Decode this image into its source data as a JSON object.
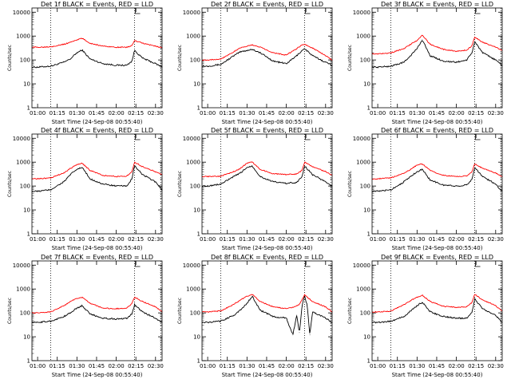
{
  "figure": {
    "ylabel": "Counts/sec",
    "xlabel": "Start Time (24-Sep-08 00:55:40)",
    "x_ticks": [
      "01:00",
      "01:15",
      "01:30",
      "01:45",
      "02:00",
      "02:15",
      "02:30"
    ],
    "y_ticks": [
      "1",
      "10",
      "100",
      "1000",
      "10000"
    ],
    "colors": {
      "events": "#000000",
      "lld": "#ff0000",
      "axes": "#000000"
    }
  },
  "chart_data": [
    {
      "type": "line",
      "title": "Det 1f BLACK = Events, RED = LLD",
      "xlim": [
        "00:55:40",
        "02:35:00"
      ],
      "ylim": [
        1,
        15000
      ],
      "log_y": true,
      "dotted_lines_at": [
        "01:10",
        "02:14",
        "02:34"
      ],
      "x": [
        "01:00",
        "01:10",
        "01:20",
        "01:25",
        "01:30",
        "01:34",
        "01:40",
        "01:50",
        "02:00",
        "02:08",
        "02:12",
        "02:14",
        "02:20",
        "02:30",
        "02:35"
      ],
      "series": [
        {
          "name": "BLACK = Events",
          "values": [
            50,
            55,
            80,
            110,
            200,
            260,
            110,
            70,
            60,
            60,
            90,
            250,
            120,
            70,
            50
          ]
        },
        {
          "name": "RED = LLD",
          "values": [
            340,
            360,
            450,
            550,
            700,
            800,
            500,
            380,
            340,
            340,
            400,
            650,
            500,
            380,
            320
          ]
        }
      ]
    },
    {
      "type": "line",
      "title": "Det 2f BLACK = Events, RED = LLD",
      "xlim": [
        "00:55:40",
        "02:35:00"
      ],
      "ylim": [
        1,
        15000
      ],
      "log_y": true,
      "dotted_lines_at": [
        "01:10",
        "02:14",
        "02:34"
      ],
      "x": [
        "01:00",
        "01:10",
        "01:20",
        "01:25",
        "01:30",
        "01:34",
        "01:40",
        "01:50",
        "02:00",
        "02:08",
        "02:12",
        "02:14",
        "02:20",
        "02:30",
        "02:35"
      ],
      "series": [
        {
          "name": "BLACK = Events",
          "values": [
            55,
            65,
            150,
            220,
            250,
            280,
            200,
            90,
            70,
            150,
            250,
            300,
            150,
            80,
            60
          ]
        },
        {
          "name": "RED = LLD",
          "values": [
            100,
            110,
            220,
            320,
            380,
            420,
            350,
            200,
            160,
            300,
            420,
            450,
            320,
            150,
            100
          ]
        }
      ]
    },
    {
      "type": "line",
      "title": "Det 3f BLACK = Events, RED = LLD",
      "xlim": [
        "00:55:40",
        "02:35:00"
      ],
      "ylim": [
        1,
        15000
      ],
      "log_y": true,
      "dotted_lines_at": [
        "01:10",
        "02:14",
        "02:34"
      ],
      "x": [
        "01:00",
        "01:10",
        "01:20",
        "01:25",
        "01:30",
        "01:34",
        "01:40",
        "01:50",
        "02:00",
        "02:08",
        "02:12",
        "02:14",
        "02:20",
        "02:30",
        "02:35"
      ],
      "series": [
        {
          "name": "BLACK = Events",
          "values": [
            50,
            55,
            80,
            150,
            300,
            700,
            150,
            90,
            80,
            100,
            200,
            600,
            200,
            100,
            60
          ]
        },
        {
          "name": "RED = LLD",
          "values": [
            180,
            200,
            300,
            450,
            650,
            1100,
            450,
            280,
            230,
            260,
            400,
            900,
            550,
            350,
            250
          ]
        }
      ]
    },
    {
      "type": "line",
      "title": "Det 4f BLACK = Events, RED = LLD",
      "xlim": [
        "00:55:40",
        "02:35:00"
      ],
      "ylim": [
        1,
        15000
      ],
      "log_y": true,
      "dotted_lines_at": [
        "01:10",
        "02:14",
        "02:34"
      ],
      "x": [
        "01:00",
        "01:10",
        "01:20",
        "01:25",
        "01:30",
        "01:34",
        "01:40",
        "01:50",
        "02:00",
        "02:08",
        "02:12",
        "02:14",
        "02:20",
        "02:30",
        "02:35"
      ],
      "series": [
        {
          "name": "BLACK = Events",
          "values": [
            60,
            70,
            150,
            300,
            500,
            600,
            200,
            120,
            100,
            100,
            200,
            700,
            300,
            150,
            70
          ]
        },
        {
          "name": "RED = LLD",
          "values": [
            200,
            220,
            350,
            550,
            800,
            900,
            450,
            280,
            250,
            260,
            400,
            1000,
            650,
            400,
            300
          ]
        }
      ]
    },
    {
      "type": "line",
      "title": "Det 5f BLACK = Events, RED = LLD",
      "xlim": [
        "00:55:40",
        "02:35:00"
      ],
      "ylim": [
        1,
        15000
      ],
      "log_y": true,
      "dotted_lines_at": [
        "01:10",
        "02:14",
        "02:34"
      ],
      "x": [
        "01:00",
        "01:10",
        "01:20",
        "01:25",
        "01:30",
        "01:34",
        "01:40",
        "01:50",
        "02:00",
        "02:08",
        "02:12",
        "02:14",
        "02:20",
        "02:30",
        "02:35"
      ],
      "series": [
        {
          "name": "BLACK = Events",
          "values": [
            100,
            120,
            250,
            350,
            600,
            700,
            250,
            150,
            130,
            140,
            250,
            700,
            300,
            150,
            100
          ]
        },
        {
          "name": "RED = LLD",
          "values": [
            250,
            260,
            400,
            550,
            900,
            1000,
            500,
            330,
            300,
            320,
            450,
            1000,
            650,
            400,
            280
          ]
        }
      ]
    },
    {
      "type": "line",
      "title": "Det 6f BLACK = Events, RED = LLD",
      "xlim": [
        "00:55:40",
        "02:35:00"
      ],
      "ylim": [
        1,
        15000
      ],
      "log_y": true,
      "dotted_lines_at": [
        "01:10",
        "02:14",
        "02:34"
      ],
      "x": [
        "01:00",
        "01:10",
        "01:20",
        "01:25",
        "01:30",
        "01:34",
        "01:40",
        "01:50",
        "02:00",
        "02:08",
        "02:12",
        "02:14",
        "02:20",
        "02:30",
        "02:35"
      ],
      "series": [
        {
          "name": "BLACK = Events",
          "values": [
            60,
            70,
            150,
            250,
            400,
            500,
            180,
            110,
            100,
            110,
            200,
            600,
            250,
            120,
            60
          ]
        },
        {
          "name": "RED = LLD",
          "values": [
            200,
            220,
            350,
            500,
            750,
            850,
            450,
            280,
            250,
            270,
            400,
            850,
            550,
            350,
            240
          ]
        }
      ]
    },
    {
      "type": "line",
      "title": "Det 7f BLACK = Events, RED = LLD",
      "xlim": [
        "00:55:40",
        "02:35:00"
      ],
      "ylim": [
        1,
        15000
      ],
      "log_y": true,
      "dotted_lines_at": [
        "01:10",
        "02:14",
        "02:34"
      ],
      "x": [
        "01:00",
        "01:10",
        "01:20",
        "01:25",
        "01:30",
        "01:34",
        "01:40",
        "01:50",
        "02:00",
        "02:08",
        "02:12",
        "02:14",
        "02:20",
        "02:30",
        "02:35"
      ],
      "series": [
        {
          "name": "BLACK = Events",
          "values": [
            40,
            45,
            70,
            100,
            160,
            200,
            90,
            60,
            55,
            60,
            90,
            220,
            110,
            60,
            40
          ]
        },
        {
          "name": "RED = LLD",
          "values": [
            100,
            110,
            200,
            300,
            400,
            450,
            250,
            160,
            150,
            160,
            250,
            450,
            300,
            180,
            110
          ]
        }
      ]
    },
    {
      "type": "line",
      "title": "Det 8f BLACK = Events, RED = LLD",
      "xlim": [
        "00:55:40",
        "02:35:00"
      ],
      "ylim": [
        1,
        15000
      ],
      "log_y": true,
      "dotted_lines_at": [
        "01:10",
        "02:14",
        "02:34"
      ],
      "x": [
        "01:00",
        "01:10",
        "01:20",
        "01:25",
        "01:30",
        "01:34",
        "01:40",
        "01:50",
        "02:00",
        "02:05",
        "02:08",
        "02:10",
        "02:12",
        "02:14",
        "02:16",
        "02:18",
        "02:20",
        "02:30",
        "02:35"
      ],
      "series": [
        {
          "name": "BLACK = Events",
          "values": [
            40,
            45,
            80,
            130,
            250,
            500,
            130,
            70,
            60,
            12,
            80,
            15,
            200,
            500,
            200,
            12,
            110,
            60,
            40
          ]
        },
        {
          "name": "RED = LLD",
          "values": [
            110,
            120,
            230,
            350,
            500,
            600,
            300,
            180,
            150,
            170,
            200,
            230,
            350,
            600,
            450,
            380,
            300,
            180,
            110
          ]
        }
      ]
    },
    {
      "type": "line",
      "title": "Det 9f BLACK = Events, RED = LLD",
      "xlim": [
        "00:55:40",
        "02:35:00"
      ],
      "ylim": [
        1,
        15000
      ],
      "log_y": true,
      "dotted_lines_at": [
        "01:10",
        "02:14",
        "02:34"
      ],
      "x": [
        "01:00",
        "01:10",
        "01:20",
        "01:25",
        "01:30",
        "01:34",
        "01:40",
        "01:50",
        "02:00",
        "02:08",
        "02:12",
        "02:14",
        "02:20",
        "02:30",
        "02:35"
      ],
      "series": [
        {
          "name": "BLACK = Events",
          "values": [
            40,
            45,
            70,
            120,
            200,
            280,
            110,
            70,
            60,
            60,
            110,
            380,
            150,
            80,
            40
          ]
        },
        {
          "name": "RED = LLD",
          "values": [
            110,
            120,
            220,
            330,
            450,
            550,
            300,
            190,
            170,
            180,
            280,
            600,
            350,
            200,
            120
          ]
        }
      ]
    }
  ]
}
